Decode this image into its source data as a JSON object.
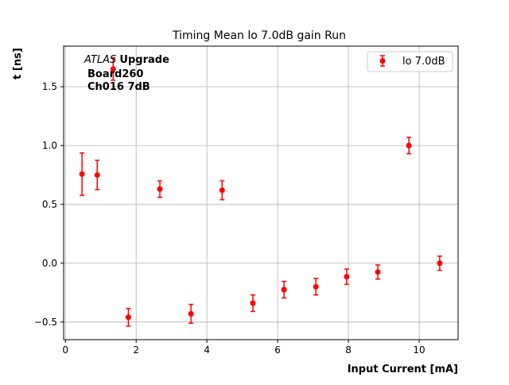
{
  "chart_data": {
    "type": "scatter",
    "title": "Timing Mean lo 7.0dB gain Run",
    "xlabel": "Input Current [mA]",
    "ylabel": "t [ns]",
    "xlim": [
      -0.05,
      11.1
    ],
    "ylim": [
      -0.65,
      1.845
    ],
    "xticks": [
      0,
      2,
      4,
      6,
      8,
      10
    ],
    "xtick_labels": [
      "0",
      "2",
      "4",
      "6",
      "8",
      "10"
    ],
    "yticks": [
      -0.5,
      0.0,
      0.5,
      1.0,
      1.5
    ],
    "ytick_labels": [
      "−0.5",
      "0.0",
      "0.5",
      "1.0",
      "1.5"
    ],
    "grid": true,
    "legend_position": "top-right",
    "annotation": {
      "italic": "ATLAS",
      "bold": "Upgrade",
      "line2": "Board260",
      "line3": "Ch016 7dB"
    },
    "series": [
      {
        "name": "lo 7.0dB",
        "color": "#ff0000",
        "x": [
          0.47,
          0.9,
          1.35,
          1.78,
          2.67,
          3.55,
          4.43,
          5.3,
          6.18,
          7.08,
          7.95,
          8.83,
          9.71,
          10.58
        ],
        "y": [
          0.757,
          0.75,
          1.65,
          -0.46,
          0.63,
          -0.43,
          0.62,
          -0.34,
          -0.225,
          -0.2,
          -0.115,
          -0.075,
          1.0,
          0.0
        ],
        "yerr": [
          0.18,
          0.125,
          0.095,
          0.075,
          0.07,
          0.08,
          0.08,
          0.07,
          0.07,
          0.07,
          0.065,
          0.06,
          0.07,
          0.06
        ]
      }
    ]
  }
}
